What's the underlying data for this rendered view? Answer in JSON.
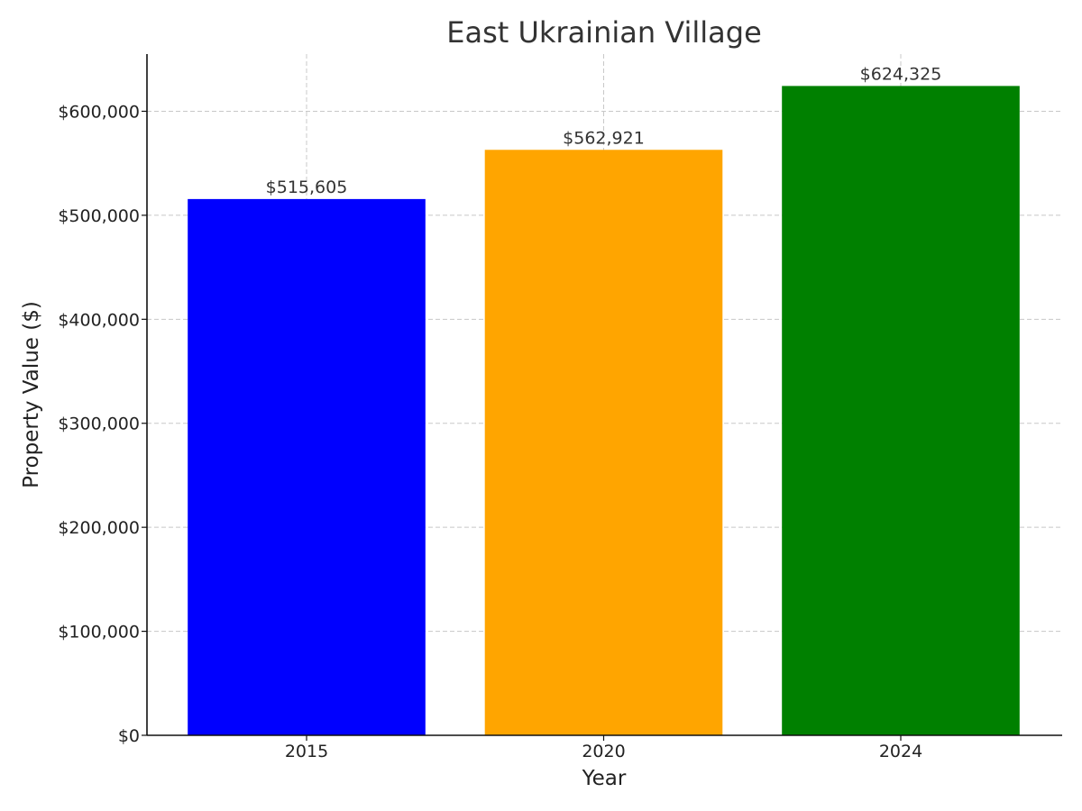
{
  "chart_data": {
    "type": "bar",
    "title": "East Ukrainian Village",
    "xlabel": "Year",
    "ylabel": "Property Value ($)",
    "categories": [
      "2015",
      "2020",
      "2024"
    ],
    "values": [
      515605,
      562921,
      624325
    ],
    "value_labels": [
      "$515,605",
      "$562,921",
      "$624,325"
    ],
    "colors": [
      "#0000ff",
      "#ffa500",
      "#008000"
    ],
    "ylim": [
      0,
      655000
    ],
    "yticks": [
      0,
      100000,
      200000,
      300000,
      400000,
      500000,
      600000
    ],
    "ytick_labels": [
      "$0",
      "$100,000",
      "$200,000",
      "$300,000",
      "$400,000",
      "$500,000",
      "$600,000"
    ],
    "grid": true,
    "legend": "none"
  }
}
